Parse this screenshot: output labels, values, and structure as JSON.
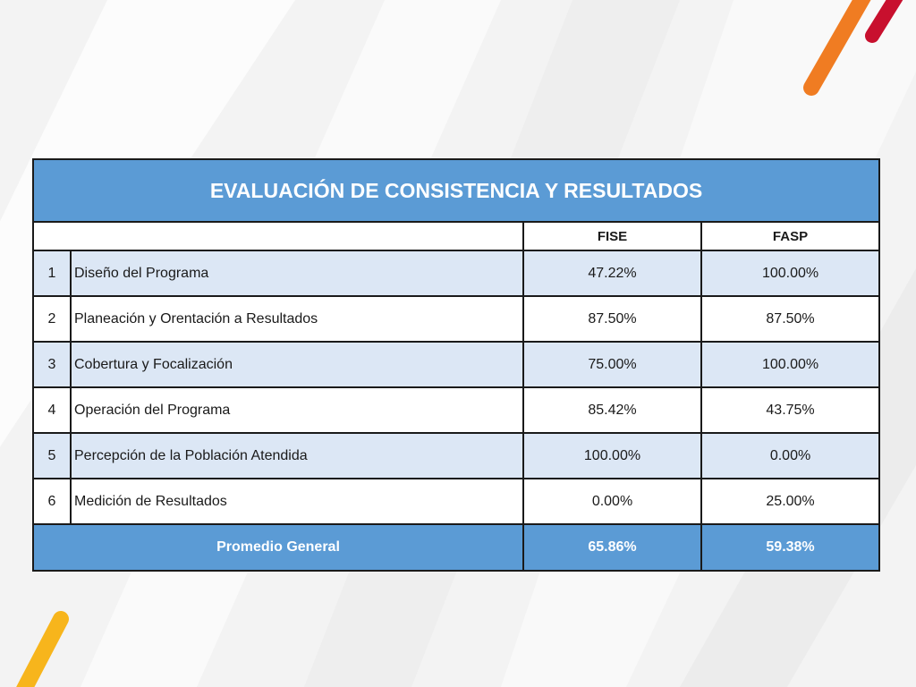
{
  "table": {
    "title": "EVALUACIÓN DE CONSISTENCIA Y RESULTADOS",
    "columns": [
      "FISE",
      "FASP"
    ],
    "rows": [
      {
        "num": "1",
        "label": "Diseño del Programa",
        "fise": "47.22%",
        "fasp": "100.00%"
      },
      {
        "num": "2",
        "label": "Planeación y Orentación a Resultados",
        "fise": "87.50%",
        "fasp": "87.50%"
      },
      {
        "num": "3",
        "label": "Cobertura y Focalización",
        "fise": "75.00%",
        "fasp": "100.00%"
      },
      {
        "num": "4",
        "label": "Operación del Programa",
        "fise": "85.42%",
        "fasp": "43.75%"
      },
      {
        "num": "5",
        "label": "Percepción de la Población Atendida",
        "fise": "100.00%",
        "fasp": "0.00%"
      },
      {
        "num": "6",
        "label": "Medición de Resultados",
        "fise": "0.00%",
        "fasp": "25.00%"
      }
    ],
    "total": {
      "label": "Promedio General",
      "fise": "65.86%",
      "fasp": "59.38%"
    }
  },
  "colors": {
    "header_blue": "#5b9bd5",
    "row_tint": "#dce7f5",
    "accent_orange": "#f07c22",
    "accent_red": "#c8102e",
    "accent_yellow": "#f7b51c"
  }
}
